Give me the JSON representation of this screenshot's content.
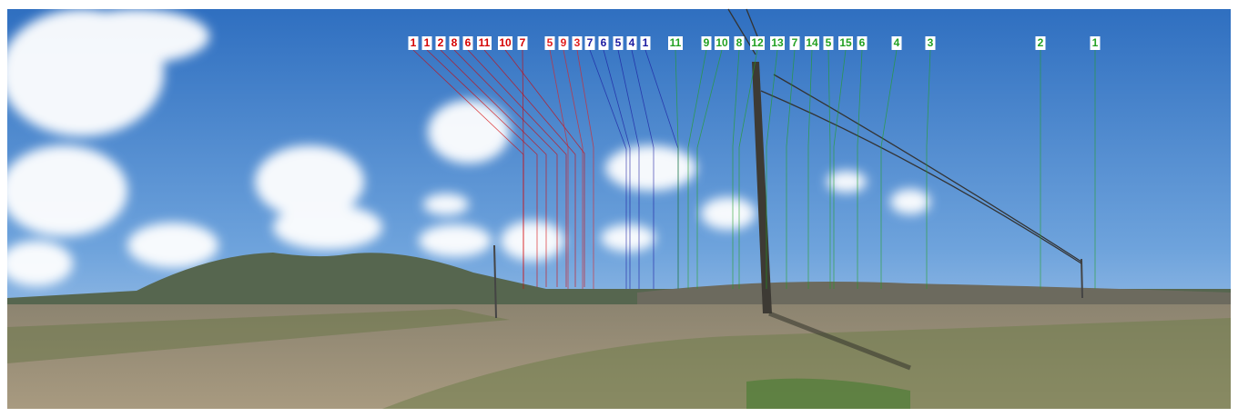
{
  "labels": [
    {
      "text": "1",
      "color": "#d40000"
    },
    {
      "text": "1",
      "color": "#d40000"
    },
    {
      "text": "2",
      "color": "#d40000"
    },
    {
      "text": "8",
      "color": "#d40000"
    },
    {
      "text": "6",
      "color": "#d40000"
    },
    {
      "text": "11",
      "color": "#d40000"
    },
    {
      "text": "10",
      "color": "#d40000"
    },
    {
      "text": "7",
      "color": "#d40000"
    },
    {
      "text": "5",
      "color": "#e02020"
    },
    {
      "text": "9",
      "color": "#e02020"
    },
    {
      "text": "3",
      "color": "#e02020"
    },
    {
      "text": "7",
      "color": "#1a1aa0"
    },
    {
      "text": "6",
      "color": "#1a1aa0"
    },
    {
      "text": "5",
      "color": "#1a1aa0"
    },
    {
      "text": "4",
      "color": "#1a1aa0"
    },
    {
      "text": "1",
      "color": "#1a1aa0"
    },
    {
      "text": "11",
      "color": "#22a022"
    },
    {
      "text": "9",
      "color": "#22a022"
    },
    {
      "text": "10",
      "color": "#22a022"
    },
    {
      "text": "8",
      "color": "#22a022"
    },
    {
      "text": "12",
      "color": "#22a022"
    },
    {
      "text": "13",
      "color": "#22a022"
    },
    {
      "text": "7",
      "color": "#22a022"
    },
    {
      "text": "14",
      "color": "#22a022"
    },
    {
      "text": "5",
      "color": "#22a022"
    },
    {
      "text": "15",
      "color": "#22a022"
    },
    {
      "text": "6",
      "color": "#22a022"
    },
    {
      "text": "4",
      "color": "#22a022"
    },
    {
      "text": "3",
      "color": "#22a022"
    },
    {
      "text": "2",
      "color": "#22a022"
    },
    {
      "text": "1",
      "color": "#22a022"
    }
  ]
}
